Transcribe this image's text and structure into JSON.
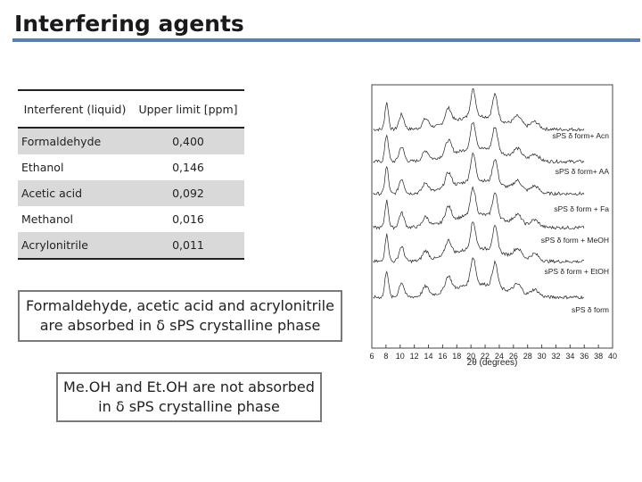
{
  "slide": {
    "title": "Interfering agents"
  },
  "table": {
    "headers": [
      "Interferent (liquid)",
      "Upper limit [ppm]"
    ],
    "rows": [
      {
        "name": "Formaldehyde",
        "value": "0,400"
      },
      {
        "name": "Ethanol",
        "value": "0,146"
      },
      {
        "name": "Acetic acid",
        "value": "0,092"
      },
      {
        "name": "Methanol",
        "value": "0,016"
      },
      {
        "name": "Acrylonitrile",
        "value": "0,011"
      }
    ]
  },
  "notes": {
    "absorbed": "Formaldehyde, acetic acid and acrylonitrile are absorbed in δ sPS crystalline phase",
    "not_absorbed": "Me.OH and Et.OH are not absorbed in δ sPS crystalline phase"
  },
  "chart_data": {
    "type": "line",
    "xlabel": "2θ (degrees)",
    "x_ticks": [
      6,
      8,
      10,
      12,
      14,
      16,
      18,
      20,
      22,
      24,
      26,
      28,
      30,
      32,
      34,
      36,
      38,
      40
    ],
    "xlim": [
      6,
      40
    ],
    "series": [
      {
        "name": "sPS δ form+ Acn"
      },
      {
        "name": "sPS δ form+ AA"
      },
      {
        "name": "sPS δ form + Fa"
      },
      {
        "name": "sPS δ form + MeOH"
      },
      {
        "name": "sPS δ form + EtOH"
      },
      {
        "name": "sPS δ form"
      }
    ]
  }
}
